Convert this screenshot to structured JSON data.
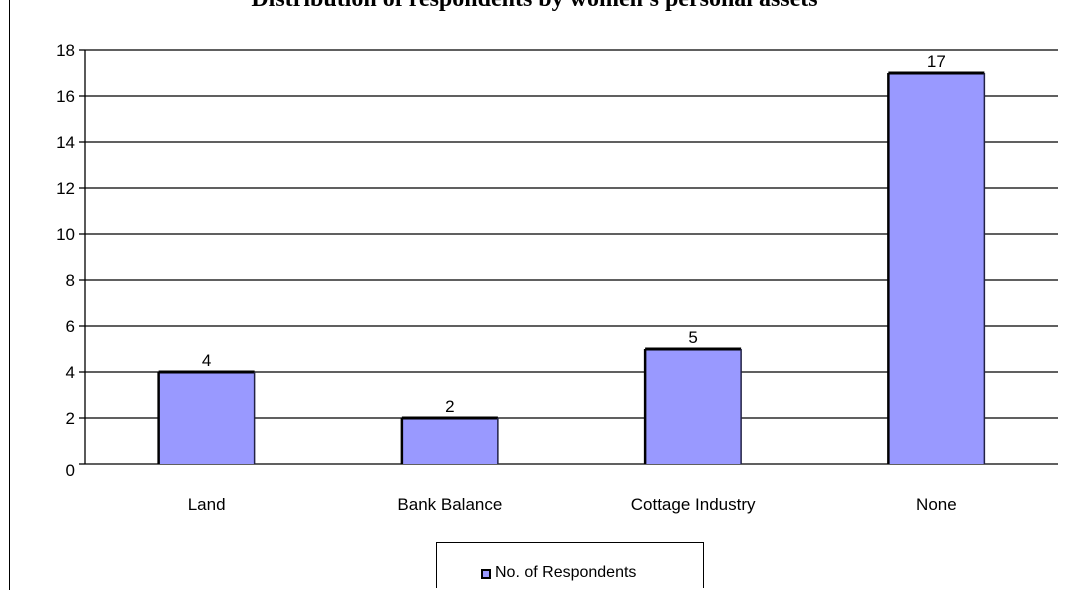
{
  "chart_data": {
    "type": "bar",
    "title": "Distribution of respondents by women's personal assets",
    "categories": [
      "Land",
      "Bank Balance",
      "Cottage Industry",
      "None"
    ],
    "series": [
      {
        "name": "No. of Respondents",
        "values": [
          4,
          2,
          5,
          17
        ]
      }
    ],
    "ylim": [
      0,
      18
    ],
    "yticks": [
      0,
      2,
      4,
      6,
      8,
      10,
      12,
      14,
      16,
      18
    ],
    "grid": true,
    "legend_position": "bottom",
    "colors": {
      "bar": "#9999ff",
      "bar_edge": "#000000",
      "grid": "#000000"
    }
  }
}
